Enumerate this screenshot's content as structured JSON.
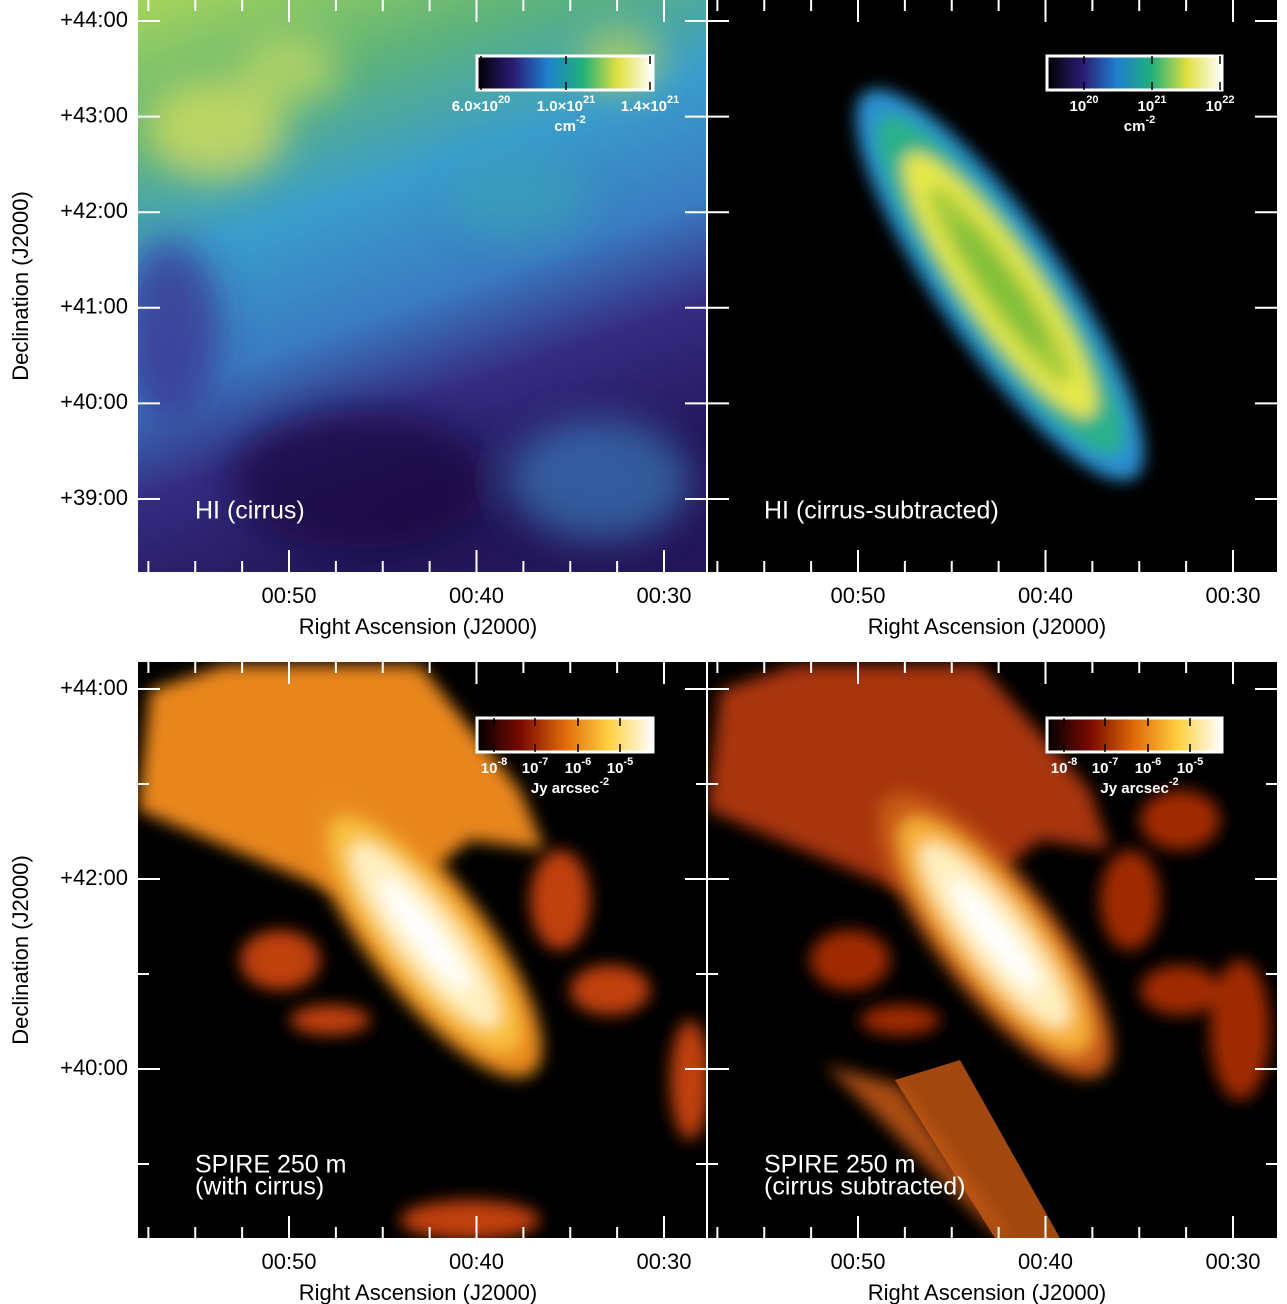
{
  "rows": [
    {
      "y_title": "Declination (J2000)",
      "y_ticks": [
        "+44:00",
        "+43:00",
        "+42:00",
        "+41:00",
        "+40:00",
        "+39:00"
      ],
      "panels": [
        {
          "x_title": "Right Ascension (J2000)",
          "x_ticks": [
            "00:50",
            "00:40",
            "00:30"
          ],
          "labels": [
            "HI (cirrus)"
          ],
          "colorbar": {
            "ticks": [
              {
                "base": "6.0×10",
                "exp": "20"
              },
              {
                "base": "1.0×10",
                "exp": "21"
              },
              {
                "base": "1.4×10",
                "exp": "21"
              }
            ],
            "unit": {
              "base": "cm",
              "exp": "-2"
            }
          }
        },
        {
          "x_title": "Right Ascension (J2000)",
          "x_ticks": [
            "00:50",
            "00:40",
            "00:30"
          ],
          "labels": [
            "HI (cirrus-subtracted)"
          ],
          "colorbar": {
            "ticks": [
              {
                "base": "10",
                "exp": "20"
              },
              {
                "base": "10",
                "exp": "21"
              },
              {
                "base": "10",
                "exp": "22"
              }
            ],
            "unit": {
              "base": "cm",
              "exp": "-2"
            }
          }
        }
      ]
    },
    {
      "y_title": "Declination (J2000)",
      "y_ticks": [
        "+44:00",
        "+42:00",
        "+40:00"
      ],
      "panels": [
        {
          "x_title": "Right Ascension (J2000)",
          "x_ticks": [
            "00:50",
            "00:40",
            "00:30"
          ],
          "labels": [
            "SPIRE 250  m",
            "(with cirrus)"
          ],
          "colorbar": {
            "ticks": [
              {
                "base": "10",
                "exp": "-8"
              },
              {
                "base": "10",
                "exp": "-7"
              },
              {
                "base": "10",
                "exp": "-6"
              },
              {
                "base": "10",
                "exp": "-5"
              }
            ],
            "unit": {
              "base": "Jy arcsec",
              "exp": "-2"
            }
          }
        },
        {
          "x_title": "Right Ascension (J2000)",
          "x_ticks": [
            "00:50",
            "00:40",
            "00:30"
          ],
          "labels": [
            "SPIRE 250  m",
            "(cirrus subtracted)"
          ],
          "colorbar": {
            "ticks": [
              {
                "base": "10",
                "exp": "-8"
              },
              {
                "base": "10",
                "exp": "-7"
              },
              {
                "base": "10",
                "exp": "-6"
              },
              {
                "base": "10",
                "exp": "-5"
              }
            ],
            "unit": {
              "base": "Jy arcsec",
              "exp": "-2"
            }
          }
        }
      ]
    }
  ]
}
